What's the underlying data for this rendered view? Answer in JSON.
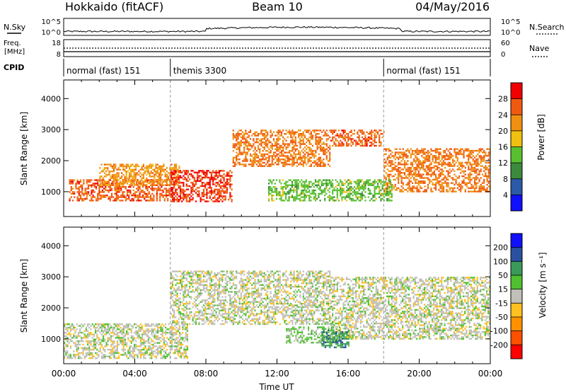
{
  "header": {
    "title": "Hokkaido (fitACF)",
    "beam": "Beam 10",
    "date": "04/May/2016"
  },
  "top_panels": {
    "nsky_label": "N.Sky",
    "nsky_ticks": [
      "10^5",
      "10^0"
    ],
    "nsearch_label": "N.Search",
    "nsearch_ticks": [
      "10^5",
      "10^0"
    ],
    "freq_label_1": "Freq.",
    "freq_label_2": "[MHz]",
    "freq_ticks": [
      "18",
      "8"
    ],
    "nave_label": "Nave",
    "nave_ticks": [
      "60",
      "0"
    ],
    "cpid_label": "CPID"
  },
  "modes": [
    {
      "label": "normal (fast) 151",
      "start_hr": 0,
      "end_hr": 6
    },
    {
      "label": "themis 3300",
      "start_hr": 6,
      "end_hr": 18
    },
    {
      "label": "normal (fast) 151",
      "start_hr": 18,
      "end_hr": 24
    }
  ],
  "colors": {
    "power": [
      "#1010ff",
      "#2a5aa8",
      "#3c8a3c",
      "#58c030",
      "#f0c010",
      "#f09010",
      "#f05a10",
      "#f00000"
    ],
    "velocity": [
      "#ff0000",
      "#ff5000",
      "#ff9000",
      "#ffc020",
      "#c0c0b8",
      "#50c030",
      "#3a9a5a",
      "#2a50a0",
      "#1010ff"
    ]
  },
  "chart_data": [
    {
      "type": "heatmap",
      "panel": "power",
      "ylabel": "Slant Range [km]",
      "yticks": [
        "1000",
        "2000",
        "3000",
        "4000"
      ],
      "ylim": [
        200,
        4600
      ],
      "xlim": [
        0,
        24
      ],
      "colorbar_label": "Power [dB]",
      "colorbar_ticks": [
        "4",
        "8",
        "12",
        "16",
        "20",
        "24",
        "28"
      ],
      "clim": [
        0,
        32
      ],
      "regions": [
        {
          "x": [
            0.3,
            6.0
          ],
          "y": [
            700,
            1400
          ],
          "value": 26
        },
        {
          "x": [
            2.0,
            6.5
          ],
          "y": [
            1200,
            1900
          ],
          "value": 22
        },
        {
          "x": [
            6.0,
            9.5
          ],
          "y": [
            700,
            1700
          ],
          "value": 28
        },
        {
          "x": [
            9.5,
            15.0
          ],
          "y": [
            1800,
            3000
          ],
          "value": 24
        },
        {
          "x": [
            15.0,
            18.0
          ],
          "y": [
            2500,
            3000
          ],
          "value": 26
        },
        {
          "x": [
            18.0,
            24.0
          ],
          "y": [
            1000,
            2400
          ],
          "value": 24
        },
        {
          "x": [
            11.5,
            18.5
          ],
          "y": [
            700,
            1400
          ],
          "value": 14
        }
      ]
    },
    {
      "type": "heatmap",
      "panel": "velocity",
      "ylabel": "Slant Range [km]",
      "yticks": [
        "1000",
        "2000",
        "3000",
        "4000"
      ],
      "ylim": [
        200,
        4600
      ],
      "xlim": [
        0,
        24
      ],
      "xlabel": "Time UT",
      "xticks": [
        "00:00",
        "04:00",
        "08:00",
        "12:00",
        "16:00",
        "20:00",
        "00:00"
      ],
      "colorbar_label": "Velocity [m s⁻¹]",
      "colorbar_ticks": [
        "-200",
        "-100",
        "-50",
        "-15",
        "15",
        "50",
        "100",
        "200"
      ],
      "clim": [
        -250,
        250
      ],
      "regions": [
        {
          "x": [
            0.0,
            7.0
          ],
          "y": [
            400,
            1500
          ],
          "value": 0
        },
        {
          "x": [
            6.0,
            15.0
          ],
          "y": [
            1500,
            3200
          ],
          "value": 0
        },
        {
          "x": [
            15.0,
            24.0
          ],
          "y": [
            1000,
            3000
          ],
          "value": 0
        },
        {
          "x": [
            12.5,
            15.5
          ],
          "y": [
            900,
            1400
          ],
          "value": 40
        },
        {
          "x": [
            14.5,
            16.0
          ],
          "y": [
            700,
            1300
          ],
          "value": 120
        }
      ]
    }
  ]
}
